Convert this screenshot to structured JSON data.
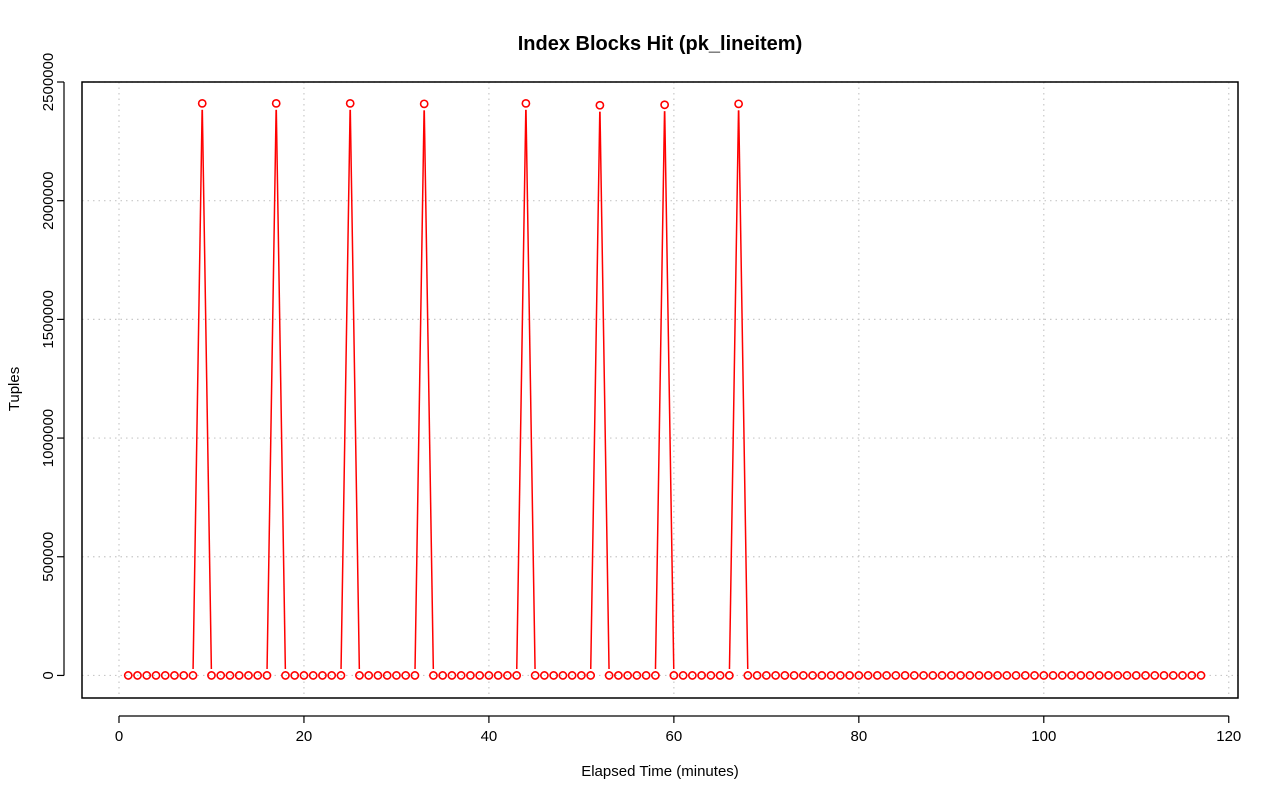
{
  "chart_data": {
    "type": "line",
    "title": "Index Blocks Hit (pk_lineitem)",
    "xlabel": "Elapsed Time (minutes)",
    "ylabel": "Tuples",
    "xlim": [
      -4,
      121
    ],
    "ylim": [
      -95000,
      2500000
    ],
    "x_ticks": [
      0,
      20,
      40,
      60,
      80,
      100,
      120
    ],
    "y_ticks": [
      0,
      500000,
      1000000,
      1500000,
      2000000,
      2500000
    ],
    "grid": true,
    "legend": "none",
    "series": [
      {
        "color": "#ff0000",
        "marker": "open-circle",
        "x": [
          1,
          2,
          3,
          4,
          5,
          6,
          7,
          8,
          9,
          10,
          11,
          12,
          13,
          14,
          15,
          16,
          17,
          18,
          19,
          20,
          21,
          22,
          23,
          24,
          25,
          26,
          27,
          28,
          29,
          30,
          31,
          32,
          33,
          34,
          35,
          36,
          37,
          38,
          39,
          40,
          41,
          42,
          43,
          44,
          45,
          46,
          47,
          48,
          49,
          50,
          51,
          52,
          53,
          54,
          55,
          56,
          57,
          58,
          59,
          60,
          61,
          62,
          63,
          64,
          65,
          66,
          67,
          68,
          69,
          70,
          71,
          72,
          73,
          74,
          75,
          76,
          77,
          78,
          79,
          80,
          81,
          82,
          83,
          84,
          85,
          86,
          87,
          88,
          89,
          90,
          91,
          92,
          93,
          94,
          95,
          96,
          97,
          98,
          99,
          100,
          101,
          102,
          103,
          104,
          105,
          106,
          107,
          108,
          109,
          110,
          111,
          112,
          113,
          114,
          115,
          116,
          117
        ],
        "y": [
          0,
          0,
          0,
          0,
          0,
          0,
          0,
          0,
          2410000,
          0,
          0,
          0,
          0,
          0,
          0,
          0,
          2410000,
          0,
          0,
          0,
          0,
          0,
          0,
          0,
          2410000,
          0,
          0,
          0,
          0,
          0,
          0,
          0,
          2408000,
          0,
          0,
          0,
          0,
          0,
          0,
          0,
          0,
          0,
          0,
          2410000,
          0,
          0,
          0,
          0,
          0,
          0,
          0,
          2402000,
          0,
          0,
          0,
          0,
          0,
          0,
          2404000,
          0,
          0,
          0,
          0,
          0,
          0,
          0,
          2408000,
          0,
          0,
          0,
          0,
          0,
          0,
          0,
          0,
          0,
          0,
          0,
          0,
          0,
          0,
          0,
          0,
          0,
          0,
          0,
          0,
          0,
          0,
          0,
          0,
          0,
          0,
          0,
          0,
          0,
          0,
          0,
          0,
          0,
          0,
          0,
          0,
          0,
          0,
          0,
          0,
          0,
          0,
          0,
          0,
          0,
          0,
          0,
          0,
          0,
          0
        ]
      }
    ]
  }
}
